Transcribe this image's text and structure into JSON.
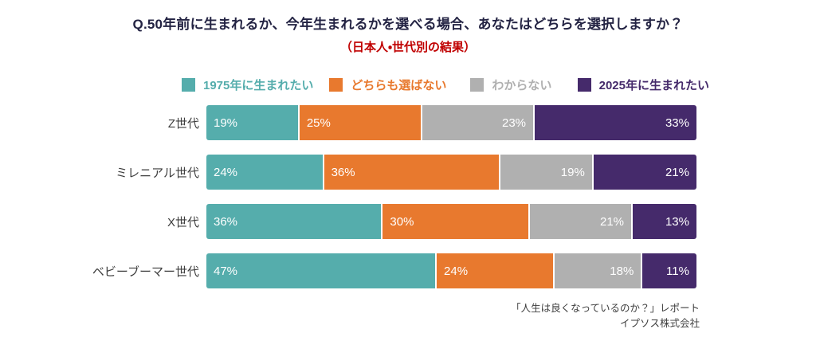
{
  "header": {
    "title": "Q.50年前に生まれるか、今年生まれるかを選べる場合、あなたはどちらを選択しますか？",
    "subtitle": "（日本人・世代別の結果）",
    "title_color": "#232343",
    "subtitle_color": "#c00000"
  },
  "chart_data": {
    "type": "bar",
    "orientation": "horizontal-stacked",
    "unit": "%",
    "title": "Q.50年前に生まれるか、今年生まれるかを選べる場合、あなたはどちらを選択しますか？",
    "subtitle": "（日本人・世代別の結果）",
    "categories": [
      "Z世代",
      "ミレニアル世代",
      "X世代",
      "ベビーブーマー世代"
    ],
    "series": [
      {
        "name": "1975年に生まれたい",
        "color": "#55adac",
        "label_align": "left",
        "values": [
          19,
          24,
          36,
          47
        ]
      },
      {
        "name": "どちらも選ばない",
        "color": "#e8792e",
        "label_align": "left",
        "values": [
          25,
          36,
          30,
          24
        ]
      },
      {
        "name": "わからない",
        "color": "#b0b0b0",
        "label_align": "right",
        "values": [
          23,
          19,
          21,
          18
        ]
      },
      {
        "name": "2025年に生まれたい",
        "color": "#452a6b",
        "label_align": "right",
        "values": [
          33,
          21,
          13,
          11
        ]
      }
    ],
    "xlim": [
      0,
      100
    ],
    "legend_position": "top",
    "value_labels": "inside",
    "value_label_color": "#ffffff",
    "grid": false
  },
  "footer": {
    "line1": "「人生は良くなっているのか？」レポート",
    "line2": "イプソス株式会社"
  }
}
